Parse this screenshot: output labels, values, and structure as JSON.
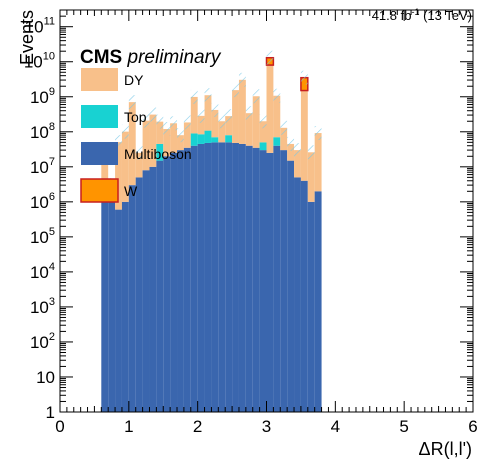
{
  "chart_data": {
    "type": "bar",
    "stacked": true,
    "y_scale": "log",
    "xlim": [
      0,
      6
    ],
    "ylim": [
      1,
      300000000000
    ],
    "x_ticks": [
      "0",
      "1",
      "2",
      "3",
      "4",
      "5",
      "6"
    ],
    "y_ticks": [
      "1",
      "10",
      "10^2",
      "10^3",
      "10^4",
      "10^5",
      "10^6",
      "10^7",
      "10^8",
      "10^9",
      "10^10",
      "10^11"
    ],
    "xlabel": "ΔR(l,l')",
    "ylabel": "Events",
    "lumi": {
      "value": "41.8 fb",
      "sup": "-1",
      "energy": " (13 TeV)"
    },
    "cms_label": {
      "bold": "CMS",
      "italic": "preliminary"
    },
    "legend_position": "top-left",
    "bin_width": 0.1,
    "x": [
      0.6,
      0.7,
      0.8,
      0.9,
      1.0,
      1.1,
      1.2,
      1.3,
      1.4,
      1.5,
      1.6,
      1.7,
      1.8,
      1.9,
      2.0,
      2.1,
      2.2,
      2.3,
      2.4,
      2.5,
      2.6,
      2.7,
      2.8,
      2.9,
      3.0,
      3.1,
      3.2,
      3.3,
      3.4,
      3.5,
      3.6,
      3.7
    ],
    "series": [
      {
        "name": "Multiboson",
        "color": "#3a66ae",
        "values": [
          1000000,
          1000000,
          600000,
          1000000,
          3000000,
          5000000,
          8000000,
          10000000,
          15000000,
          20000000,
          25000000,
          30000000,
          35000000,
          40000000,
          45000000,
          48000000,
          50000000,
          50000000,
          50000000,
          48000000,
          45000000,
          40000000,
          35000000,
          30000000,
          25000000,
          40000000,
          30000000,
          15000000,
          5000000,
          4000000,
          1000000,
          2000000
        ]
      },
      {
        "name": "Top",
        "color": "#18d2d2",
        "values": [
          0,
          0,
          0,
          0,
          0,
          0,
          0,
          0,
          30000000,
          0,
          0,
          0,
          0,
          50000000,
          40000000,
          60000000,
          20000000,
          0,
          30000000,
          0,
          0,
          0,
          0,
          20000000,
          0,
          30000000,
          0,
          0,
          0,
          0,
          0,
          0
        ]
      },
      {
        "name": "DY",
        "color": "#f8c08a",
        "values": [
          30000000,
          2000000,
          50000000,
          100000000,
          700000000,
          20000000,
          200000000,
          300000000,
          150000000,
          100000000,
          150000000,
          50000000,
          150000000,
          900000000,
          200000000,
          1000000000,
          350000000,
          150000000,
          200000000,
          1500000000,
          3000000000,
          300000000,
          1000000000,
          150000000,
          8000000000,
          1000000000,
          100000000,
          30000000,
          25000000,
          1500000000,
          25000000,
          90000000
        ]
      },
      {
        "name": "W",
        "color": "#ff9400",
        "values": [
          0,
          0,
          0,
          0,
          0,
          0,
          0,
          0,
          0,
          0,
          0,
          0,
          0,
          0,
          0,
          0,
          0,
          0,
          0,
          0,
          0,
          0,
          0,
          0,
          5000000000,
          0,
          0,
          0,
          0,
          2000000000,
          0,
          0
        ]
      }
    ],
    "w_edge_color": "#c81e1e"
  }
}
